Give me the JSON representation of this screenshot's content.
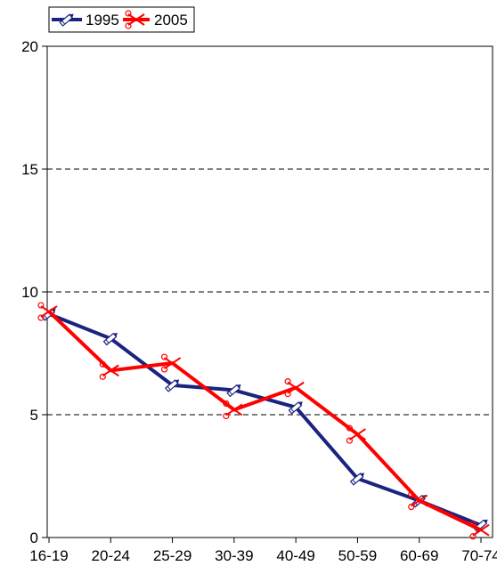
{
  "chart_data": {
    "type": "line",
    "title": "",
    "xlabel": "",
    "ylabel": "",
    "categories": [
      "16-19",
      "20-24",
      "25-29",
      "30-39",
      "40-49",
      "50-59",
      "60-69",
      "70-74"
    ],
    "series": [
      {
        "name": "1995",
        "color": "#1a237e",
        "marker": "pencil-icon",
        "values": [
          9.1,
          8.1,
          6.2,
          6.0,
          5.3,
          2.4,
          1.5,
          0.5
        ]
      },
      {
        "name": "2005",
        "color": "#ff0000",
        "marker": "scissors-icon",
        "values": [
          9.2,
          6.8,
          7.1,
          5.2,
          6.1,
          4.2,
          1.5,
          0.3
        ]
      }
    ],
    "ylim": [
      0,
      20
    ],
    "yticks": [
      0,
      5,
      10,
      15,
      20
    ],
    "grid": "horizontal-dashed",
    "legend": "top-left"
  }
}
